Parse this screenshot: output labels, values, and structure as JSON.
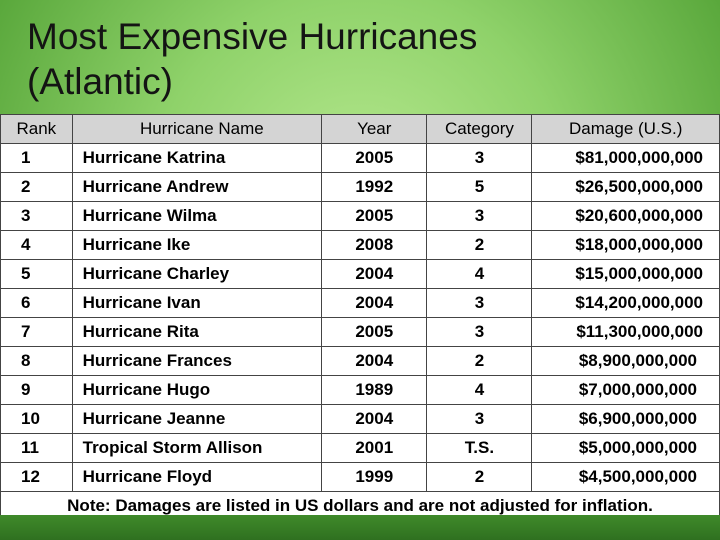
{
  "title_line1": "Most Expensive Hurricanes",
  "title_line2": "(Atlantic)",
  "headers": {
    "rank": "Rank",
    "name": "Hurricane Name",
    "year": "Year",
    "category": "Category",
    "damage": "Damage",
    "damage_unit": "(U.S.)"
  },
  "rows": [
    {
      "rank": "1",
      "name": "Hurricane Katrina",
      "year": "2005",
      "category": "3",
      "damage": "$81,000,000,000"
    },
    {
      "rank": "2",
      "name": "Hurricane Andrew",
      "year": "1992",
      "category": "5",
      "damage": "$26,500,000,000"
    },
    {
      "rank": "3",
      "name": "Hurricane Wilma",
      "year": "2005",
      "category": "3",
      "damage": "$20,600,000,000"
    },
    {
      "rank": "4",
      "name": "Hurricane Ike",
      "year": "2008",
      "category": "2",
      "damage": "$18,000,000,000"
    },
    {
      "rank": "5",
      "name": "Hurricane Charley",
      "year": "2004",
      "category": "4",
      "damage": "$15,000,000,000"
    },
    {
      "rank": "6",
      "name": "Hurricane Ivan",
      "year": "2004",
      "category": "3",
      "damage": "$14,200,000,000"
    },
    {
      "rank": "7",
      "name": "Hurricane Rita",
      "year": "2005",
      "category": "3",
      "damage": "$11,300,000,000"
    },
    {
      "rank": "8",
      "name": "Hurricane Frances",
      "year": "2004",
      "category": "2",
      "damage": "$8,900,000,000"
    },
    {
      "rank": "9",
      "name": "Hurricane Hugo",
      "year": "1989",
      "category": "4",
      "damage": "$7,000,000,000"
    },
    {
      "rank": "10",
      "name": "Hurricane Jeanne",
      "year": "2004",
      "category": "3",
      "damage": "$6,900,000,000"
    },
    {
      "rank": "11",
      "name": "Tropical Storm Allison",
      "year": "2001",
      "category": "T.S.",
      "damage": "$5,000,000,000"
    },
    {
      "rank": "12",
      "name": "Hurricane Floyd",
      "year": "1999",
      "category": "2",
      "damage": "$4,500,000,000"
    }
  ],
  "note": "Note: Damages are listed in US dollars and are not adjusted for inflation."
}
